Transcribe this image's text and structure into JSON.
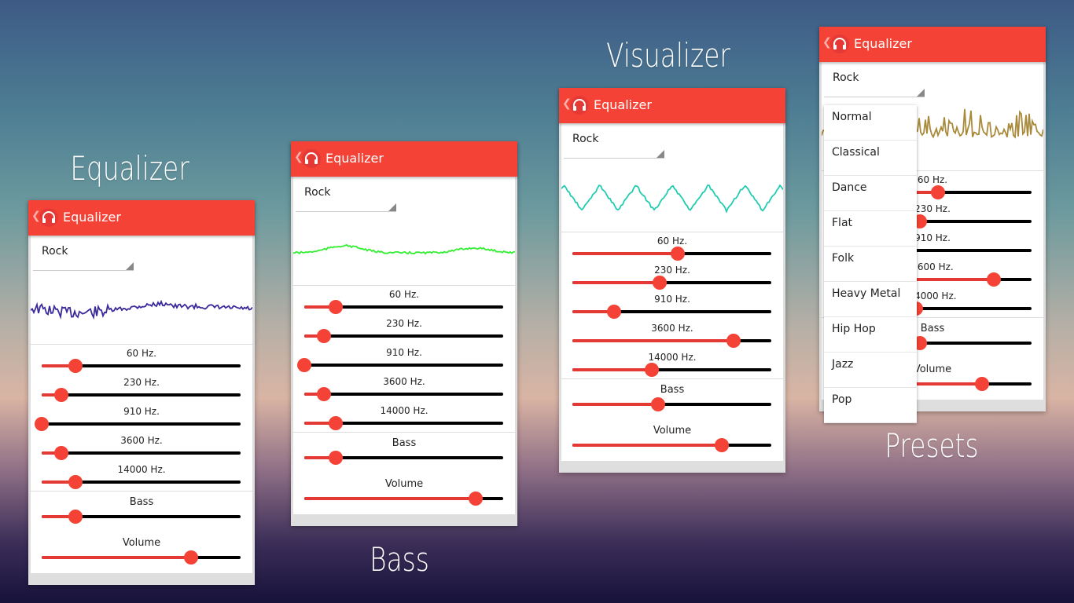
{
  "captions": [
    {
      "text": "Equalizer"
    },
    {
      "text": "Bass"
    },
    {
      "text": "Visualizer"
    },
    {
      "text": "Presets"
    }
  ],
  "app": {
    "title": "Equalizer",
    "accent": "#f44336",
    "preset": "Rock"
  },
  "band_labels": [
    "60 Hz.",
    "230 Hz.",
    "910 Hz.",
    "3600 Hz.",
    "14000 Hz."
  ],
  "bass_label": "Bass",
  "volume_label": "Volume",
  "panels": [
    {
      "wave_color": "#3a2a9a",
      "wave_style": "noise",
      "bands": [
        0.17,
        0.1,
        0.0,
        0.1,
        0.17
      ],
      "bass": 0.17,
      "volume": 0.75
    },
    {
      "wave_color": "#33ee33",
      "wave_style": "smooth",
      "bands": [
        0.16,
        0.1,
        0.0,
        0.1,
        0.16
      ],
      "bass": 0.16,
      "volume": 0.86
    },
    {
      "wave_color": "#22ccb0",
      "wave_style": "triangle",
      "bands": [
        0.53,
        0.44,
        0.21,
        0.81,
        0.4
      ],
      "bass": 0.43,
      "volume": 0.75
    },
    {
      "wave_color": "#a88a3a",
      "wave_style": "spiky",
      "bands": [
        0.53,
        0.44,
        0.21,
        0.81,
        0.42
      ],
      "bass": 0.44,
      "volume": 0.75,
      "menu": [
        "Normal",
        "Classical",
        "Dance",
        "Flat",
        "Folk",
        "Heavy Metal",
        "Hip Hop",
        "Jazz",
        "Pop"
      ]
    }
  ]
}
